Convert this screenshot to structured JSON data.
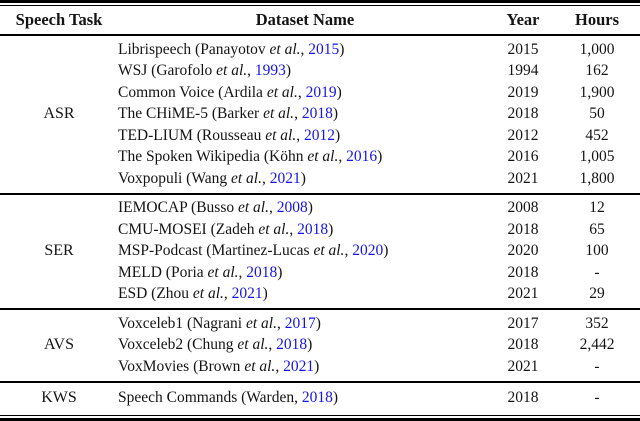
{
  "colors": {
    "citation_link": "#1414ee",
    "text": "#141414",
    "rule": "#000000"
  },
  "header": {
    "task": "Speech Task",
    "dataset": "Dataset Name",
    "year": "Year",
    "hours": "Hours"
  },
  "sections": [
    {
      "task": "ASR",
      "rows": [
        {
          "prefix": "Librispeech (Panayotov ",
          "etal": "et al.",
          "sep": ", ",
          "cite_year": "2015",
          "suffix": ")",
          "year": "2015",
          "hours": "1,000"
        },
        {
          "prefix": "WSJ (Garofolo ",
          "etal": "et al.",
          "sep": ", ",
          "cite_year": "1993",
          "suffix": ")",
          "year": "1994",
          "hours": "162"
        },
        {
          "prefix": "Common Voice (Ardila ",
          "etal": "et al.",
          "sep": ", ",
          "cite_year": "2019",
          "suffix": ")",
          "year": "2019",
          "hours": "1,900"
        },
        {
          "prefix": "The CHiME-5 (Barker ",
          "etal": "et al.",
          "sep": ", ",
          "cite_year": "2018",
          "suffix": ")",
          "year": "2018",
          "hours": "50"
        },
        {
          "prefix": "TED-LIUM (Rousseau ",
          "etal": "et al.",
          "sep": ", ",
          "cite_year": "2012",
          "suffix": ")",
          "year": "2012",
          "hours": "452"
        },
        {
          "prefix": "The Spoken Wikipedia (Köhn ",
          "etal": "et al.",
          "sep": ", ",
          "cite_year": "2016",
          "suffix": ")",
          "year": "2016",
          "hours": "1,005"
        },
        {
          "prefix": "Voxpopuli (Wang ",
          "etal": "et al.",
          "sep": ", ",
          "cite_year": "2021",
          "suffix": ")",
          "year": "2021",
          "hours": "1,800"
        }
      ]
    },
    {
      "task": "SER",
      "rows": [
        {
          "prefix": "IEMOCAP (Busso ",
          "etal": "et al.",
          "sep": ", ",
          "cite_year": "2008",
          "suffix": ")",
          "year": "2008",
          "hours": "12"
        },
        {
          "prefix": "CMU-MOSEI (Zadeh ",
          "etal": "et al.",
          "sep": ", ",
          "cite_year": "2018",
          "suffix": ")",
          "year": "2018",
          "hours": "65"
        },
        {
          "prefix": "MSP-Podcast (Martinez-Lucas ",
          "etal": "et al.",
          "sep": ", ",
          "cite_year": "2020",
          "suffix": ")",
          "year": "2020",
          "hours": "100"
        },
        {
          "prefix": "MELD (Poria ",
          "etal": "et al.",
          "sep": ", ",
          "cite_year": "2018",
          "suffix": ")",
          "year": "2018",
          "hours": "-"
        },
        {
          "prefix": "ESD (Zhou ",
          "etal": "et al.",
          "sep": ", ",
          "cite_year": "2021",
          "suffix": ")",
          "year": "2021",
          "hours": "29"
        }
      ]
    },
    {
      "task": "AVS",
      "rows": [
        {
          "prefix": "Voxceleb1 (Nagrani ",
          "etal": "et al.",
          "sep": ", ",
          "cite_year": "2017",
          "suffix": ")",
          "year": "2017",
          "hours": "352"
        },
        {
          "prefix": "Voxceleb2 (Chung ",
          "etal": "et al.",
          "sep": ", ",
          "cite_year": "2018",
          "suffix": ")",
          "year": "2018",
          "hours": "2,442"
        },
        {
          "prefix": "VoxMovies (Brown ",
          "etal": "et al.",
          "sep": ", ",
          "cite_year": "2021",
          "suffix": ")",
          "year": "2021",
          "hours": "-"
        }
      ]
    },
    {
      "task": "KWS",
      "rows": [
        {
          "prefix": "Speech Commands (Warden",
          "etal": "",
          "sep": ", ",
          "cite_year": "2018",
          "suffix": ")",
          "year": "2018",
          "hours": "-"
        }
      ]
    }
  ]
}
